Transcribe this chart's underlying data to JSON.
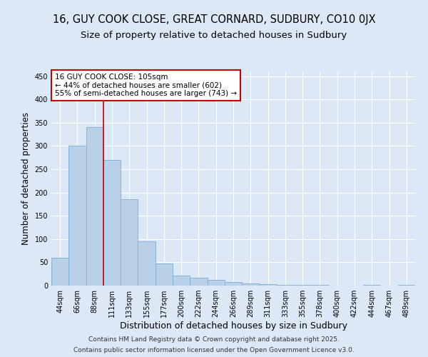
{
  "title": "16, GUY COOK CLOSE, GREAT CORNARD, SUDBURY, CO10 0JX",
  "subtitle": "Size of property relative to detached houses in Sudbury",
  "xlabel": "Distribution of detached houses by size in Sudbury",
  "ylabel": "Number of detached properties",
  "categories": [
    "44sqm",
    "66sqm",
    "88sqm",
    "111sqm",
    "133sqm",
    "155sqm",
    "177sqm",
    "200sqm",
    "222sqm",
    "244sqm",
    "266sqm",
    "289sqm",
    "311sqm",
    "333sqm",
    "355sqm",
    "378sqm",
    "400sqm",
    "422sqm",
    "444sqm",
    "467sqm",
    "489sqm"
  ],
  "values": [
    60,
    300,
    340,
    270,
    185,
    95,
    47,
    22,
    17,
    12,
    8,
    5,
    3,
    2,
    1,
    1,
    0,
    0,
    1,
    0,
    1
  ],
  "bar_color": "#b8d0e8",
  "bar_edge_color": "#7aaed6",
  "vline_color": "#cc0000",
  "annotation_line1": "16 GUY COOK CLOSE: 105sqm",
  "annotation_line2": "← 44% of detached houses are smaller (602)",
  "annotation_line3": "55% of semi-detached houses are larger (743) →",
  "annotation_box_color": "#ffffff",
  "annotation_box_edge": "#cc0000",
  "ylim": [
    0,
    460
  ],
  "yticks": [
    0,
    50,
    100,
    150,
    200,
    250,
    300,
    350,
    400,
    450
  ],
  "background_color": "#dce8f5",
  "plot_bg_color": "#dce8f5",
  "footer_line1": "Contains HM Land Registry data © Crown copyright and database right 2025.",
  "footer_line2": "Contains public sector information licensed under the Open Government Licence v3.0.",
  "title_fontsize": 10.5,
  "subtitle_fontsize": 9.5,
  "xlabel_fontsize": 9,
  "ylabel_fontsize": 8.5,
  "tick_fontsize": 7,
  "annotation_fontsize": 7.5,
  "footer_fontsize": 6.5
}
